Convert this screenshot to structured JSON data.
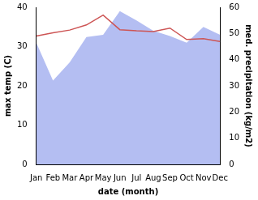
{
  "chart_data": {
    "type": "line",
    "categories": [
      "Jan",
      "Feb",
      "Mar",
      "Apr",
      "May",
      "Jun",
      "Jul",
      "Aug",
      "Sep",
      "Oct",
      "Nov",
      "Dec"
    ],
    "x_label": "date (month)",
    "y_label": "max temp (C)",
    "y2_label": "med. precipitation (kg/m2)",
    "ylim": [
      0,
      40
    ],
    "yticks": [
      0,
      10,
      20,
      30,
      40
    ],
    "y2lim": [
      0,
      60
    ],
    "y2ticks": [
      0,
      10,
      20,
      30,
      40,
      50,
      60
    ],
    "grid": false,
    "series": [
      {
        "name": "max temp",
        "type": "line",
        "color": "#cd5555",
        "marker": "none",
        "line_style": "solid",
        "values": [
          32.7,
          33.5,
          34.2,
          35.5,
          38,
          34.3,
          34,
          33.8,
          34.7,
          31.8,
          32,
          31.3
        ]
      },
      {
        "name": "med. precipitation",
        "type": "area",
        "axis": "y2",
        "color": "#b4bef2",
        "marker": "none",
        "line_style": "solid",
        "values": [
          46.5,
          32,
          39,
          48.6,
          49.5,
          58.5,
          55,
          51,
          49,
          46.5,
          52.5,
          49.5
        ]
      }
    ]
  }
}
